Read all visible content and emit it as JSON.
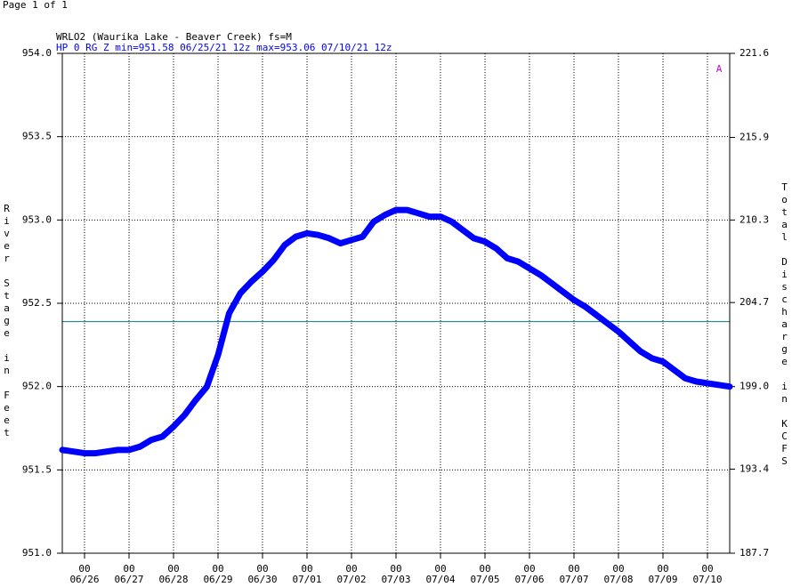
{
  "page_label": "Page 1 of 1",
  "chart_data": {
    "type": "line",
    "title": "WRLO2 (Waurika Lake - Beaver Creek) fs=M",
    "subtitle": "HP 0 RG Z min=951.58 06/25/21 12z max=953.06 07/10/21 12z",
    "annotation": "A",
    "ylabel": "River Stage in Feet",
    "y2label": "Total Discharge in KCFS",
    "grid": true,
    "xlim": [
      "06/25 12",
      "07/10 12"
    ],
    "xticks": [
      {
        "hour": "00",
        "date": "06/26"
      },
      {
        "hour": "00",
        "date": "06/27"
      },
      {
        "hour": "00",
        "date": "06/28"
      },
      {
        "hour": "00",
        "date": "06/29"
      },
      {
        "hour": "00",
        "date": "06/30"
      },
      {
        "hour": "00",
        "date": "07/01"
      },
      {
        "hour": "00",
        "date": "07/02"
      },
      {
        "hour": "00",
        "date": "07/03"
      },
      {
        "hour": "00",
        "date": "07/04"
      },
      {
        "hour": "00",
        "date": "07/05"
      },
      {
        "hour": "00",
        "date": "07/06"
      },
      {
        "hour": "00",
        "date": "07/07"
      },
      {
        "hour": "00",
        "date": "07/08"
      },
      {
        "hour": "00",
        "date": "07/09"
      },
      {
        "hour": "00",
        "date": "07/10"
      }
    ],
    "ylim": [
      951,
      954
    ],
    "yticks": [
      {
        "value": 951,
        "label": "951.0"
      },
      951.5,
      {
        "value": 952,
        "label": "952.0"
      },
      952.5,
      {
        "value": 953,
        "label": "953.0"
      },
      953.5,
      {
        "value": 954,
        "label": "954.0"
      }
    ],
    "y2lim": [
      187.7,
      221.6
    ],
    "y2ticks": [
      187.7,
      193.4,
      {
        "value": 199,
        "label": "199.0"
      },
      204.7,
      210.3,
      215.9,
      221.6
    ],
    "reference_line": {
      "value": 952.39,
      "color": "#008080"
    },
    "x": [
      "06/25 12",
      "06/25 18",
      "06/26 00",
      "06/26 06",
      "06/26 12",
      "06/26 18",
      "06/27 00",
      "06/27 06",
      "06/27 12",
      "06/27 18",
      "06/28 00",
      "06/28 06",
      "06/28 12",
      "06/28 18",
      "06/29 00",
      "06/29 06",
      "06/29 12",
      "06/29 18",
      "06/30 00",
      "06/30 06",
      "06/30 12",
      "06/30 18",
      "07/01 00",
      "07/01 06",
      "07/01 12",
      "07/01 18",
      "07/02 00",
      "07/02 06",
      "07/02 12",
      "07/02 18",
      "07/03 00",
      "07/03 06",
      "07/03 12",
      "07/03 18",
      "07/04 00",
      "07/04 06",
      "07/04 12",
      "07/04 18",
      "07/05 00",
      "07/05 06",
      "07/05 12",
      "07/05 18",
      "07/06 00",
      "07/06 06",
      "07/06 12",
      "07/06 18",
      "07/07 00",
      "07/07 06",
      "07/07 12",
      "07/07 18",
      "07/08 00",
      "07/08 06",
      "07/08 12",
      "07/08 18",
      "07/09 00",
      "07/09 06",
      "07/09 12",
      "07/09 18",
      "07/10 00",
      "07/10 06",
      "07/10 12"
    ],
    "series": [
      {
        "color": "#0000ff",
        "values": [
          951.62,
          951.61,
          951.6,
          951.6,
          951.61,
          951.62,
          951.62,
          951.64,
          951.68,
          951.7,
          951.76,
          951.83,
          951.92,
          952.0,
          952.19,
          952.44,
          952.56,
          952.63,
          952.69,
          952.76,
          952.85,
          952.9,
          952.92,
          952.91,
          952.89,
          952.86,
          952.88,
          952.9,
          952.99,
          953.03,
          953.06,
          953.06,
          953.04,
          953.02,
          953.02,
          952.99,
          952.94,
          952.89,
          952.87,
          952.83,
          952.77,
          952.75,
          952.71,
          952.67,
          952.62,
          952.57,
          952.52,
          952.48,
          952.43,
          952.38,
          952.33,
          952.27,
          952.21,
          952.17,
          952.15,
          952.1,
          952.05,
          952.03,
          952.02,
          952.01,
          952.0
        ]
      }
    ]
  }
}
